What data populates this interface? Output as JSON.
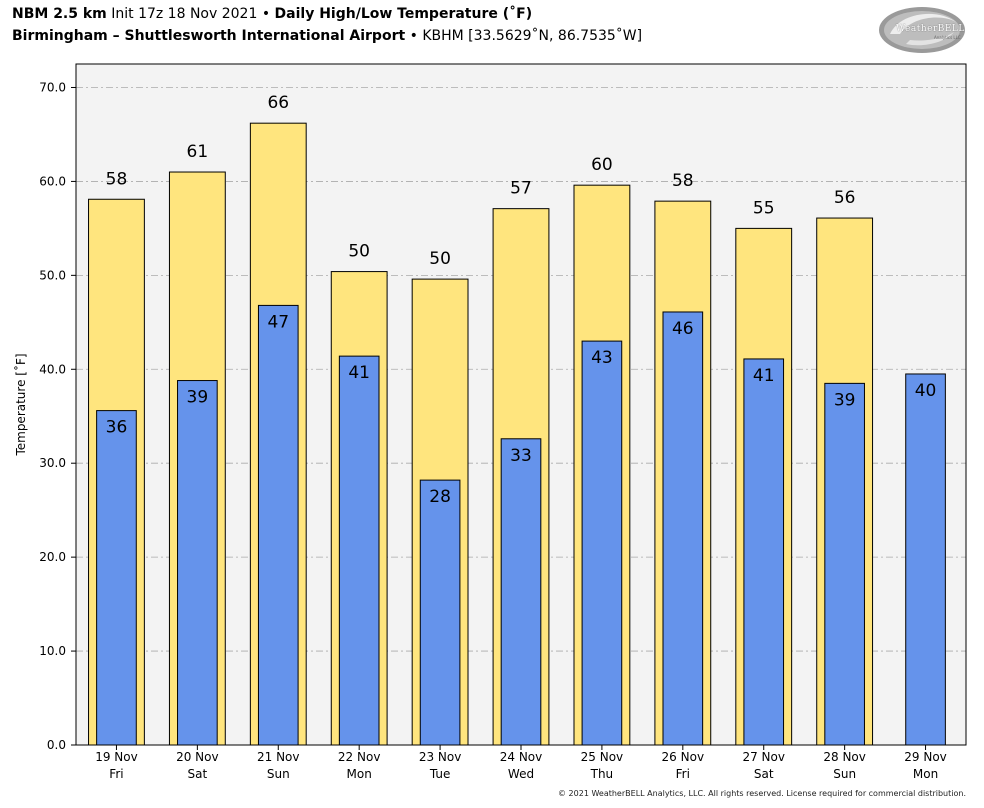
{
  "header": {
    "model": "NBM 2.5 km",
    "init": "Init 17z 18 Nov 2021",
    "bullet": "•",
    "title": "Daily High/Low Temperature (˚F)",
    "station": "Birmingham – Shuttlesworth International Airport",
    "station_meta": "KBHM [33.5629˚N, 86.7535˚W]"
  },
  "logo": {
    "text": "WeatherBELL",
    "sub": "Analytics LLC"
  },
  "footer": "© 2021 WeatherBELL Analytics, LLC. All rights reserved. License required for commercial distribution.",
  "colors": {
    "high": "#FFE57E",
    "low": "#6593EB",
    "plot_bg": "#F3F3F3",
    "grid": "#AAAAAA"
  },
  "chart_data": {
    "type": "bar",
    "ylabel": "Temperature [˚F]",
    "ylim": [
      0,
      72.5
    ],
    "yticks": [
      "0.0",
      "10.0",
      "20.0",
      "30.0",
      "40.0",
      "50.0",
      "60.0",
      "70.0"
    ],
    "grid": true,
    "categories": [
      [
        "19 Nov",
        "Fri"
      ],
      [
        "20 Nov",
        "Sat"
      ],
      [
        "21 Nov",
        "Sun"
      ],
      [
        "22 Nov",
        "Mon"
      ],
      [
        "23 Nov",
        "Tue"
      ],
      [
        "24 Nov",
        "Wed"
      ],
      [
        "25 Nov",
        "Thu"
      ],
      [
        "26 Nov",
        "Fri"
      ],
      [
        "27 Nov",
        "Sat"
      ],
      [
        "28 Nov",
        "Sun"
      ],
      [
        "29 Nov",
        "Mon"
      ]
    ],
    "series": [
      {
        "key": "high",
        "values": [
          58.1,
          61.0,
          66.2,
          50.4,
          49.6,
          57.1,
          59.6,
          57.9,
          55.0,
          56.1,
          null
        ],
        "labels": [
          "58",
          "61",
          "66",
          "50",
          "50",
          "57",
          "60",
          "58",
          "55",
          "56",
          null
        ]
      },
      {
        "key": "low",
        "values": [
          35.6,
          38.8,
          46.8,
          41.4,
          28.2,
          32.6,
          43.0,
          46.1,
          41.1,
          38.5,
          39.5
        ],
        "labels": [
          "36",
          "39",
          "47",
          "41",
          "28",
          "33",
          "43",
          "46",
          "41",
          "39",
          "40"
        ]
      }
    ]
  }
}
